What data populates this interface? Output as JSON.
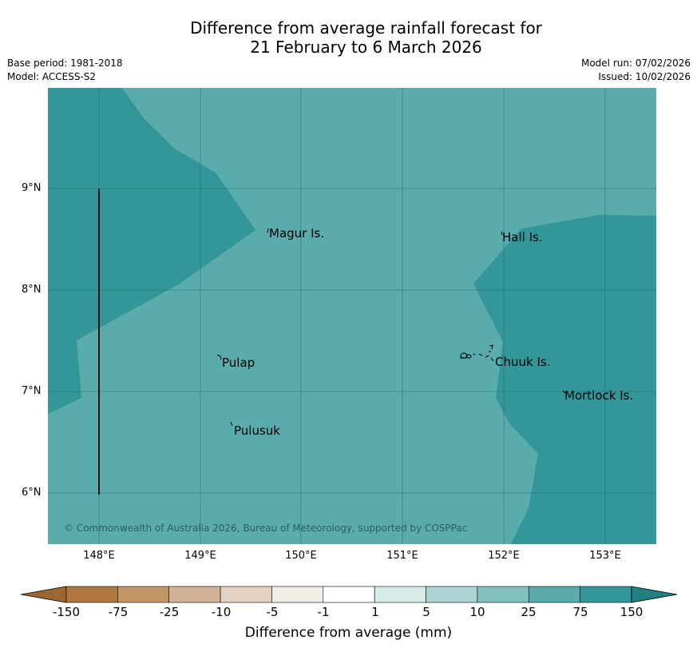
{
  "title": {
    "line1": "Difference from average rainfall forecast for",
    "line2": "21 February to 6 March 2026"
  },
  "meta": {
    "base_period": "Base period: 1981-2018",
    "model": "Model: ACCESS-S2",
    "model_run": "Model run: 07/02/2026",
    "issued": "Issued: 10/02/2026"
  },
  "map": {
    "background_color": "#5aabab",
    "wet_color": "#33979a",
    "lat_ticks": [
      "9°N",
      "8°N",
      "7°N",
      "6°N"
    ],
    "lon_ticks": [
      "148°E",
      "149°E",
      "150°E",
      "151°E",
      "152°E",
      "153°E"
    ],
    "places": [
      {
        "name": "Magur Is."
      },
      {
        "name": "Hall Is."
      },
      {
        "name": "Pulap"
      },
      {
        "name": "Chuuk Is."
      },
      {
        "name": "Mortlock Is."
      },
      {
        "name": "Pulusuk"
      }
    ],
    "copyright": "© Commonwealth of Australia 2026, Bureau of Meteorology, supported by COSPPac"
  },
  "colorbar": {
    "labels": [
      "-150",
      "-75",
      "-25",
      "-10",
      "-5",
      "-1",
      "1",
      "5",
      "10",
      "25",
      "75",
      "150"
    ],
    "colors": [
      "#9c6630",
      "#b1773d",
      "#c29466",
      "#d3b295",
      "#e5d1c1",
      "#f1ede7",
      "#ffffff",
      "#d6ebea",
      "#acd4d3",
      "#83c1bf",
      "#5aabab",
      "#33979a",
      "#23807f"
    ],
    "title": "Difference from average (mm)"
  }
}
